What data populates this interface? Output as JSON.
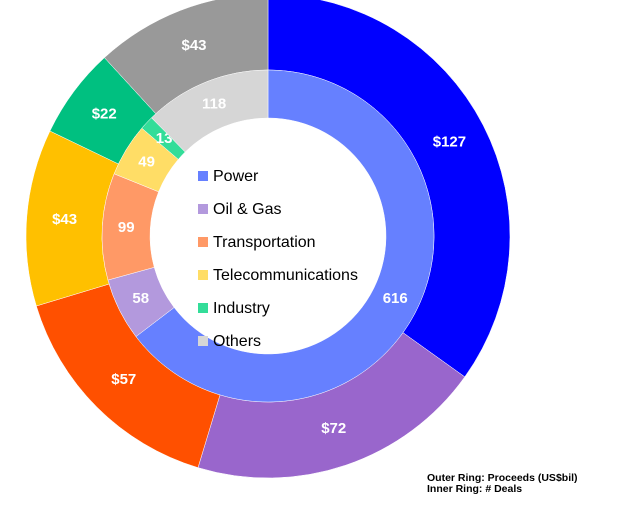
{
  "chart_data": {
    "type": "double-donut",
    "categories": [
      "Power",
      "Oil & Gas",
      "Transportation",
      "Telecommunications",
      "Industry",
      "Others"
    ],
    "series": [
      {
        "name": "Outer Ring: Proceeds (US$bil)",
        "ring": "outer",
        "values": [
          127,
          72,
          57,
          43,
          22,
          43
        ],
        "value_labels": [
          "$127",
          "$72",
          "$57",
          "$43",
          "$22",
          "$43"
        ],
        "colors": [
          "#0000ff",
          "#9966cc",
          "#ff5000",
          "#ffc000",
          "#00c080",
          "#999999"
        ]
      },
      {
        "name": "Inner Ring: # Deals",
        "ring": "inner",
        "values": [
          616,
          58,
          99,
          49,
          13,
          118
        ],
        "colors": [
          "#6680ff",
          "#b399dd",
          "#ff9966",
          "#ffdd66",
          "#33dd99",
          "#d6d6d6"
        ]
      }
    ],
    "legend_colors": [
      "#6680ff",
      "#b399dd",
      "#ff9966",
      "#ffdd66",
      "#33dd99",
      "#d6d6d6"
    ]
  }
}
